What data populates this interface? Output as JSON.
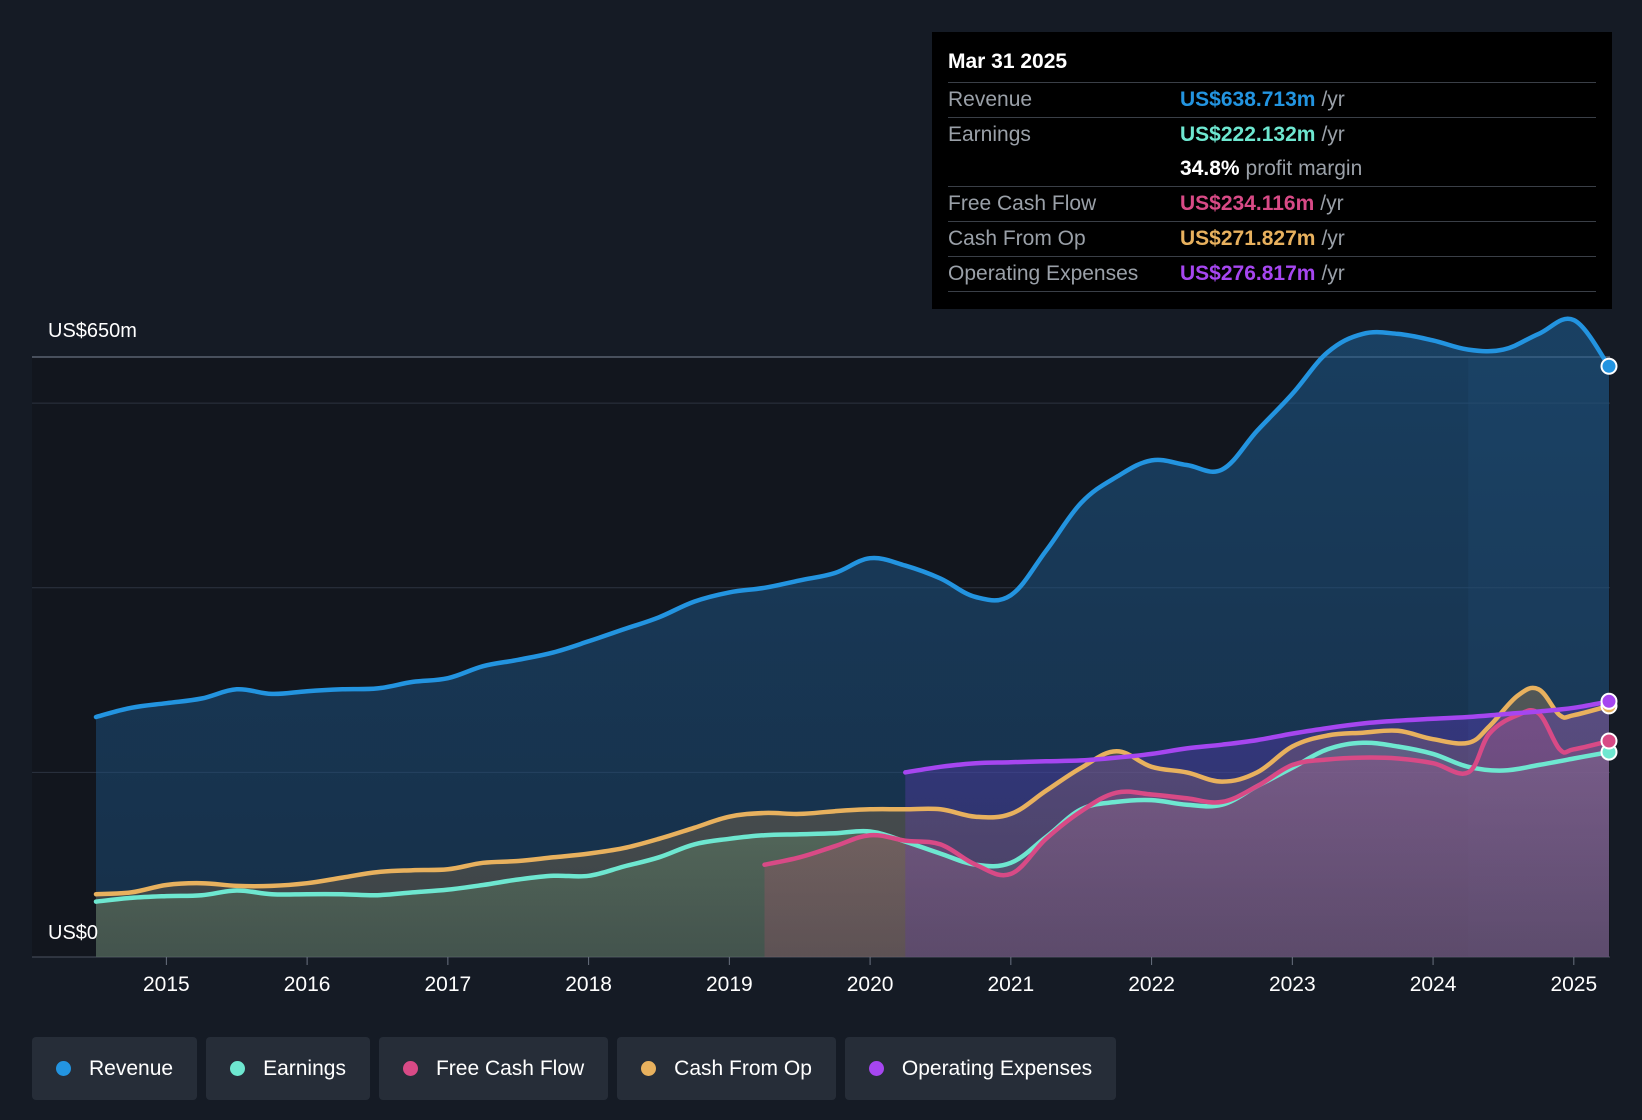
{
  "tooltip": {
    "date": "Mar 31 2025",
    "rows": [
      {
        "label": "Revenue",
        "value": "US$638.713m",
        "unit": "/yr",
        "color": "#2394e0"
      },
      {
        "label": "Earnings",
        "value": "US$222.132m",
        "unit": "/yr",
        "color": "#6ee7d0"
      },
      {
        "label": "",
        "value": "34.8%",
        "unit": "profit margin",
        "color": "#ffffff"
      },
      {
        "label": "Free Cash Flow",
        "value": "US$234.116m",
        "unit": "/yr",
        "color": "#d84a86"
      },
      {
        "label": "Cash From Op",
        "value": "US$271.827m",
        "unit": "/yr",
        "color": "#e8b15e"
      },
      {
        "label": "Operating Expenses",
        "value": "US$276.817m",
        "unit": "/yr",
        "color": "#a646f0"
      }
    ]
  },
  "legend": [
    {
      "label": "Revenue",
      "color": "#2394e0"
    },
    {
      "label": "Earnings",
      "color": "#6ee7d0"
    },
    {
      "label": "Free Cash Flow",
      "color": "#d84a86"
    },
    {
      "label": "Cash From Op",
      "color": "#e8b15e"
    },
    {
      "label": "Operating Expenses",
      "color": "#a646f0"
    }
  ],
  "chart_data": {
    "type": "area",
    "ylabel_top": "US$650m",
    "ylabel_bottom": "US$0",
    "ylim": [
      0,
      650
    ],
    "xlim": [
      2014.5,
      2025.25
    ],
    "x_ticks": [
      "2015",
      "2016",
      "2017",
      "2018",
      "2019",
      "2020",
      "2021",
      "2022",
      "2023",
      "2024",
      "2025"
    ],
    "highlight_start": 2024.25,
    "series": [
      {
        "name": "Revenue",
        "color": "#2394e0",
        "x": [
          2014.5,
          2014.75,
          2015,
          2015.25,
          2015.5,
          2015.75,
          2016,
          2016.25,
          2016.5,
          2016.75,
          2017,
          2017.25,
          2017.5,
          2017.75,
          2018,
          2018.25,
          2018.5,
          2018.75,
          2019,
          2019.25,
          2019.5,
          2019.75,
          2020,
          2020.25,
          2020.5,
          2020.75,
          2021,
          2021.25,
          2021.5,
          2021.75,
          2022,
          2022.25,
          2022.5,
          2022.75,
          2023,
          2023.25,
          2023.5,
          2023.75,
          2024,
          2024.25,
          2024.5,
          2024.75,
          2025,
          2025.25
        ],
        "y": [
          260,
          270,
          275,
          280,
          290,
          285,
          288,
          290,
          291,
          298,
          302,
          315,
          322,
          330,
          342,
          355,
          368,
          385,
          395,
          400,
          408,
          416,
          432,
          424,
          410,
          390,
          392,
          440,
          492,
          520,
          538,
          533,
          528,
          570,
          610,
          655,
          675,
          675,
          668,
          658,
          658,
          675,
          690,
          640
        ]
      },
      {
        "name": "Earnings",
        "color": "#6ee7d0",
        "x": [
          2014.5,
          2014.75,
          2015,
          2015.25,
          2015.5,
          2015.75,
          2016,
          2016.25,
          2016.5,
          2016.75,
          2017,
          2017.25,
          2017.5,
          2017.75,
          2018,
          2018.25,
          2018.5,
          2018.75,
          2019,
          2019.25,
          2019.5,
          2019.75,
          2020,
          2020.25,
          2020.5,
          2020.75,
          2021,
          2021.25,
          2021.5,
          2021.75,
          2022,
          2022.25,
          2022.5,
          2022.75,
          2023,
          2023.25,
          2023.5,
          2023.75,
          2024,
          2024.25,
          2024.5,
          2024.75,
          2025,
          2025.25
        ],
        "y": [
          60,
          64,
          66,
          67,
          72,
          68,
          68,
          68,
          67,
          70,
          73,
          78,
          84,
          88,
          88,
          98,
          108,
          122,
          128,
          132,
          133,
          134,
          136,
          125,
          112,
          100,
          102,
          130,
          160,
          168,
          170,
          165,
          165,
          185,
          205,
          225,
          232,
          228,
          220,
          206,
          202,
          208,
          215,
          222
        ]
      },
      {
        "name": "Free Cash Flow",
        "color": "#d84a86",
        "x": [
          2019.25,
          2019.5,
          2019.75,
          2020,
          2020.25,
          2020.5,
          2020.75,
          2021,
          2021.25,
          2021.5,
          2021.75,
          2022,
          2022.25,
          2022.5,
          2022.75,
          2023,
          2023.25,
          2023.5,
          2023.75,
          2024,
          2024.25,
          2024.4,
          2024.6,
          2024.75,
          2024.9,
          2025,
          2025.25
        ],
        "y": [
          100,
          108,
          120,
          132,
          126,
          122,
          100,
          90,
          128,
          158,
          178,
          176,
          172,
          168,
          185,
          208,
          214,
          216,
          215,
          210,
          200,
          242,
          262,
          264,
          225,
          225,
          234
        ]
      },
      {
        "name": "Cash From Op",
        "color": "#e8b15e",
        "x": [
          2014.5,
          2014.75,
          2015,
          2015.25,
          2015.5,
          2015.75,
          2016,
          2016.25,
          2016.5,
          2016.75,
          2017,
          2017.25,
          2017.5,
          2017.75,
          2018,
          2018.25,
          2018.5,
          2018.75,
          2019,
          2019.25,
          2019.5,
          2019.75,
          2020,
          2020.25,
          2020.5,
          2020.75,
          2021,
          2021.25,
          2021.5,
          2021.75,
          2022,
          2022.25,
          2022.5,
          2022.75,
          2023,
          2023.25,
          2023.5,
          2023.75,
          2024,
          2024.25,
          2024.4,
          2024.6,
          2024.75,
          2024.9,
          2025,
          2025.25
        ],
        "y": [
          68,
          70,
          78,
          80,
          77,
          77,
          80,
          86,
          92,
          94,
          95,
          102,
          104,
          108,
          112,
          118,
          128,
          140,
          152,
          156,
          155,
          158,
          160,
          160,
          160,
          152,
          155,
          180,
          205,
          223,
          206,
          200,
          190,
          200,
          228,
          240,
          243,
          245,
          236,
          232,
          250,
          283,
          290,
          262,
          262,
          272
        ]
      },
      {
        "name": "Operating Expenses",
        "color": "#a646f0",
        "x": [
          2020.25,
          2020.5,
          2020.75,
          2021,
          2021.25,
          2021.5,
          2021.75,
          2022,
          2022.25,
          2022.5,
          2022.75,
          2023,
          2023.25,
          2023.5,
          2023.75,
          2024,
          2024.25,
          2024.5,
          2024.75,
          2025,
          2025.25
        ],
        "y": [
          200,
          206,
          210,
          211,
          212,
          213,
          216,
          220,
          226,
          230,
          235,
          242,
          248,
          253,
          256,
          258,
          260,
          263,
          266,
          270,
          277
        ]
      }
    ]
  }
}
